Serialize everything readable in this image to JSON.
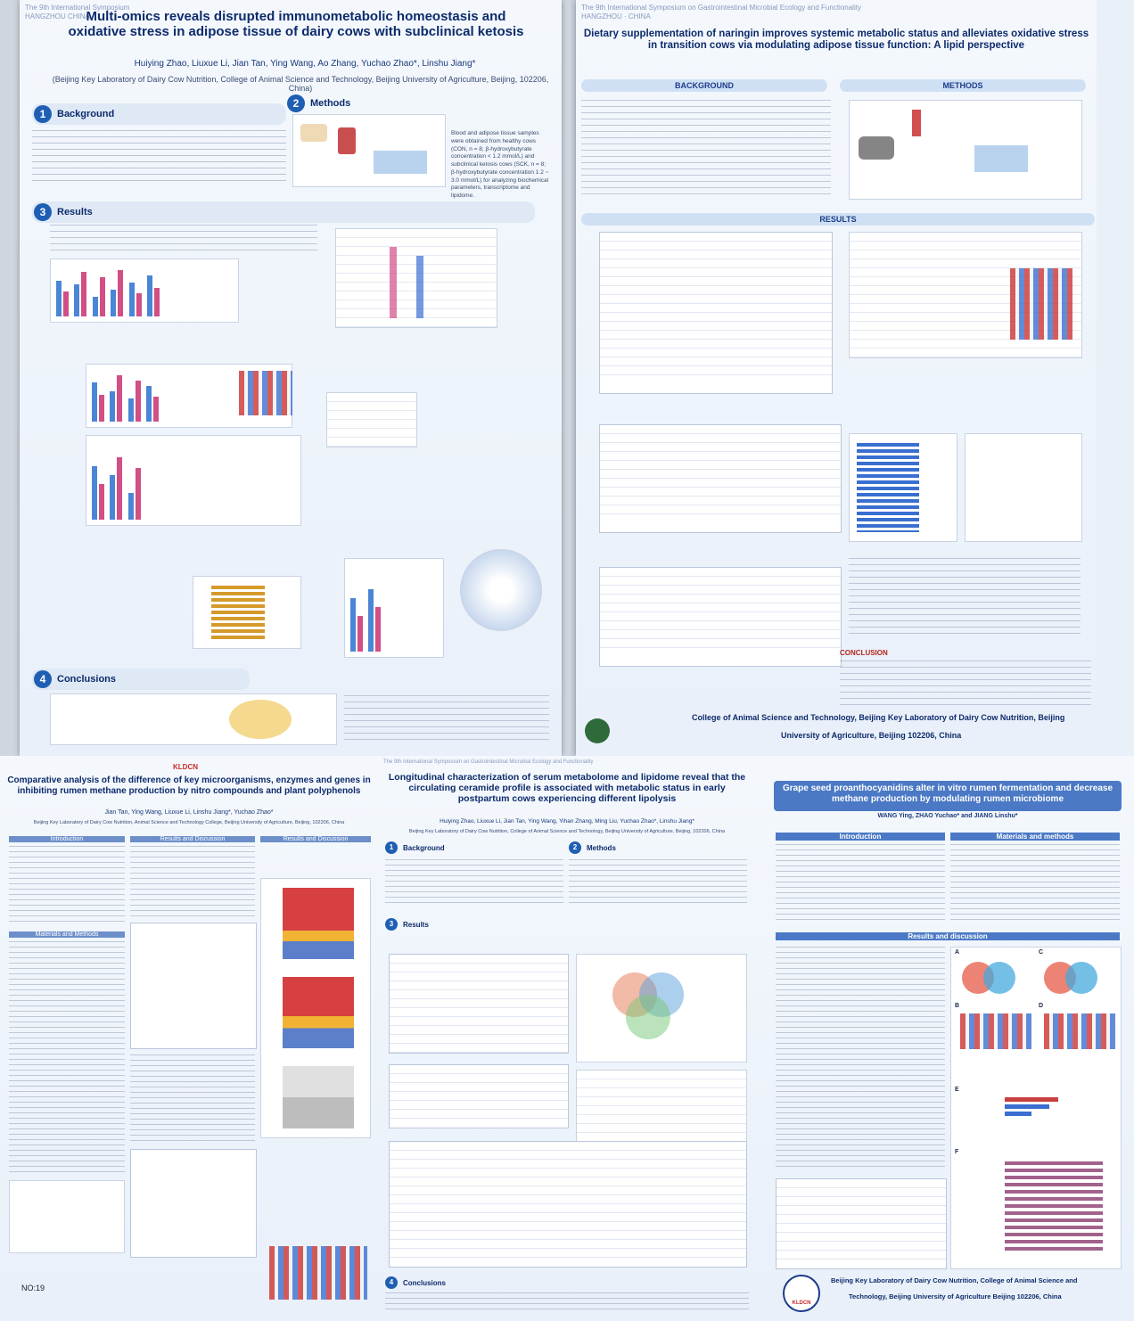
{
  "posters": {
    "p1": {
      "conference": "The 9th International Symposium",
      "conference_sub": "HANGZHOU CHINA",
      "title": "Multi-omics reveals disrupted immunometabolic homeostasis and oxidative stress in adipose tissue of dairy cows with subclinical ketosis",
      "authors": "Huiying Zhao, Liuxue Li, Jian Tan, Ying Wang, Ao Zhang, Yuchao Zhao*, Linshu Jiang*",
      "affiliation": "(Beijing Key Laboratory of Dairy Cow Nutrition, College of Animal Science and Technology, Beijing University of Agriculture, Beijing, 102206, China)",
      "sections": [
        {
          "num": "1",
          "label": "Background"
        },
        {
          "num": "2",
          "label": "Methods"
        },
        {
          "num": "3",
          "label": "Results"
        },
        {
          "num": "4",
          "label": "Conclusions"
        }
      ],
      "methods_text": "Blood and adipose tissue samples were obtained from healthy cows (CON, n = 8; β-hydroxybutyrate concentration < 1.2 mmol/L) and subclinical ketosis cows (SCK, n = 8; β-hydroxybutyrate concentration 1.2 ~ 3.0 mmol/L) for analyzing biochemical parameters, transcriptome and lipidome."
    },
    "p2": {
      "conference": "The 9th International Symposium on Gastrointestinal Microbial Ecology and Functionality",
      "conference_sub": "HANGZHOU · CHINA",
      "title": "Dietary supplementation of naringin improves systemic metabolic status and alleviates oxidative stress in transition cows via modulating adipose tissue function: A lipid perspective",
      "sections": [
        {
          "label": "BACKGROUND"
        },
        {
          "label": "METHODS"
        },
        {
          "label": "RESULTS"
        },
        {
          "label": "CONCLUSION"
        }
      ],
      "footer_line1": "College of Animal Science and Technology, Beijing Key Laboratory of Dairy Cow Nutrition, Beijing",
      "footer_line2": "University of Agriculture, Beijing 102206, China"
    },
    "p3": {
      "title": "Comparative analysis of the difference of key microorganisms, enzymes and genes in inhibiting rumen methane production by nitro compounds and plant polyphenols",
      "authors": "Jian Tan, Ying Wang, Liuxue Li, Linshu Jiang*, Yuchao Zhao*",
      "affiliation": "Beijing Key Laboratory of Dairy Cow Nutrition, Animal Science and Technology College, Beijing University of Agriculture, Beijing, 102206, China",
      "sections": [
        {
          "label": "Introduction"
        },
        {
          "label": "Results and Discussion"
        },
        {
          "label": "Results and Discussion"
        },
        {
          "label": "Materials and Methods"
        }
      ],
      "logo_text": "KLDCN",
      "badge": "NO:19"
    },
    "p4": {
      "conference": "The 9th International Symposium on Gastrointestinal Microbial Ecology and Functionality",
      "title": "Longitudinal characterization of serum metabolome and lipidome reveal that the circulating ceramide profile is associated with metabolic status in early postpartum cows experiencing different lipolysis",
      "authors": "Huiying Zhao, Liuxue Li, Jian Tan, Ying Wang, Yihan Zhang, Ming Liu, Yuchao Zhao*, Linshu Jiang*",
      "affiliation": "Beijing Key Laboratory of Dairy Cow Nutrition, College of Animal Science and Technology, Beijing University of Agriculture, Beijing, 102206, China",
      "sections": [
        {
          "num": "1",
          "label": "Background"
        },
        {
          "num": "2",
          "label": "Methods"
        },
        {
          "num": "3",
          "label": "Results"
        },
        {
          "num": "4",
          "label": "Conclusions"
        }
      ]
    },
    "p5": {
      "title": "Grape seed proanthocyanidins alter in vitro rumen fermentation and decrease methane production by modulating rumen microbiome",
      "authors": "WANG Ying, ZHAO Yuchao* and JIANG Linshu*",
      "sections": [
        {
          "label": "Introduction"
        },
        {
          "label": "Materials and methods"
        },
        {
          "label": "Results and discussion"
        }
      ],
      "panel_labels": [
        "A",
        "B",
        "C",
        "D",
        "E",
        "F"
      ],
      "logo_text": "KLDCN",
      "footer_line1": "Beijing Key Laboratory of Dairy Cow Nutrition, College of Animal Science and",
      "footer_line2": "Technology, Beijing University of Agriculture Beijing 102206, China"
    }
  }
}
